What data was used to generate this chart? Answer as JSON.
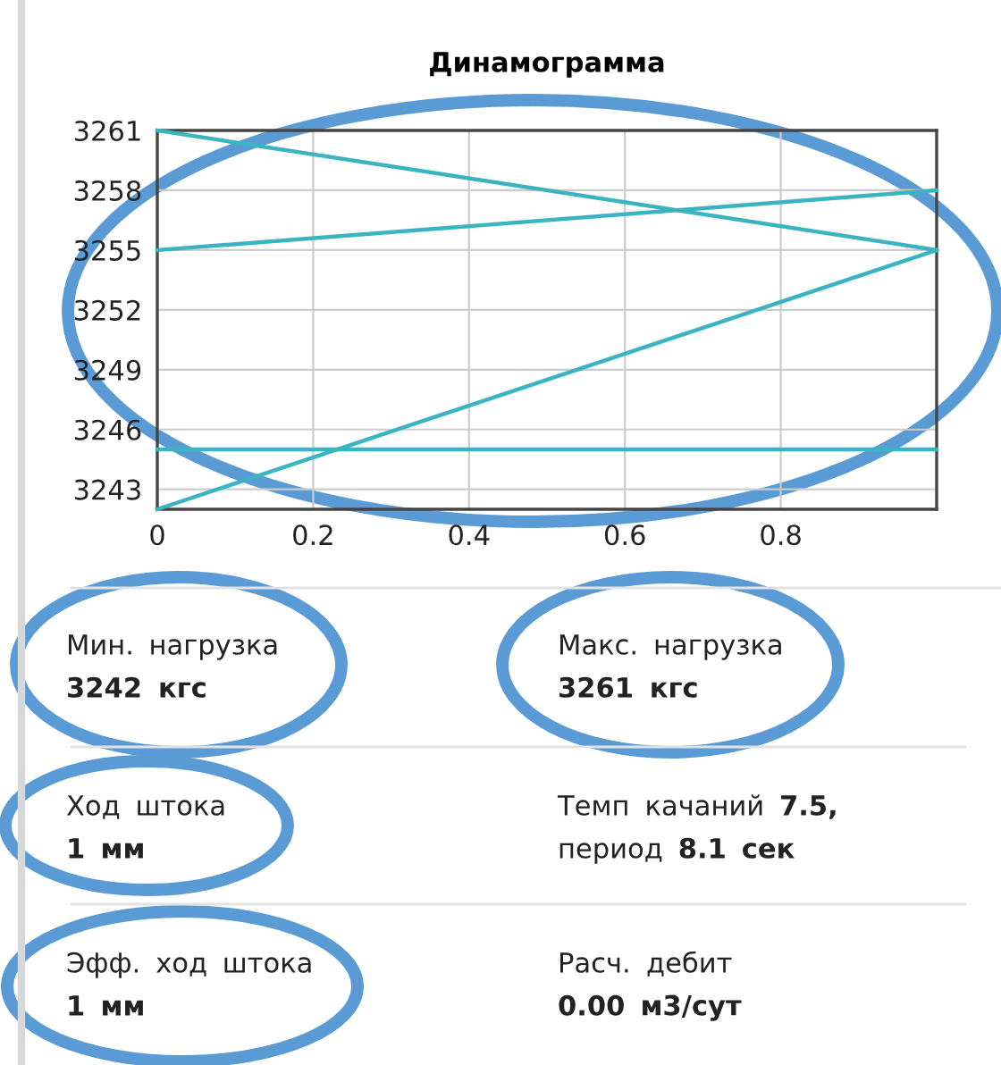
{
  "chart_data": [
    {
      "type": "line",
      "title": "Динамограмма",
      "x": [
        0,
        1
      ],
      "series": [
        {
          "color": "#3bb4c1",
          "values": [
            3261,
            3255
          ]
        },
        {
          "color": "#3bb4c1",
          "values": [
            3255,
            3258
          ]
        },
        {
          "color": "#3bb4c1",
          "values": [
            3242,
            3255
          ]
        },
        {
          "color": "#3bb4c1",
          "values": [
            3245,
            3245
          ]
        }
      ],
      "xlim": [
        0,
        1
      ],
      "xticks": [
        0,
        0.2,
        0.4,
        0.6,
        0.8
      ],
      "ylim": [
        3242,
        3261
      ],
      "yticks": [
        3243,
        3246,
        3249,
        3252,
        3255,
        3258,
        3261
      ],
      "grid": true
    },
    {
      "type": "other",
      "annotations": [
        "Мин. нагрузка",
        "3242 кгс",
        "Макс. нагрузка",
        "3261 кгс",
        "Ход штока",
        "1 мм",
        "Темп качаний 7.5,",
        "период 8.1 сек",
        "Эфф. ход штока",
        "1 мм",
        "Расч. дебит",
        "0.00 м3/сут"
      ]
    }
  ]
}
